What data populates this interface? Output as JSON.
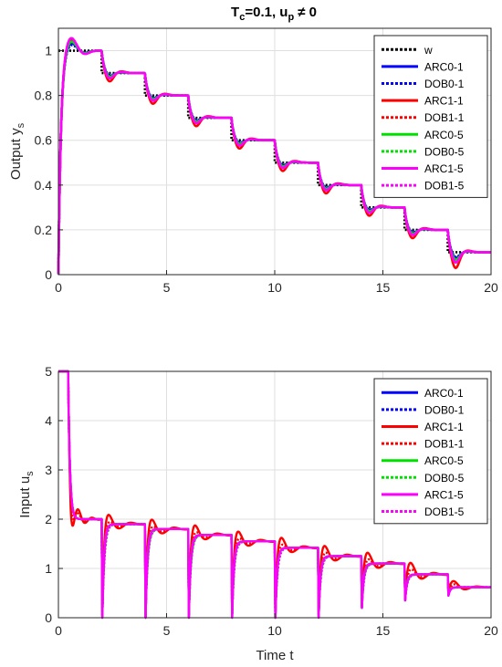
{
  "chart_data": [
    {
      "type": "line",
      "title_main": "T",
      "title_sub1": "c",
      "title_mid": "=0.1, u",
      "title_sub2": "p",
      "title_end": "≠ 0",
      "ylabel_main": "Output y",
      "ylabel_sub": "s",
      "xlim": [
        0,
        20
      ],
      "ylim": [
        0,
        1.1
      ],
      "xticks": [
        "0",
        "5",
        "10",
        "15",
        "20"
      ],
      "yticks": [
        "0",
        "0.2",
        "0.4",
        "0.6",
        "0.8",
        "1"
      ],
      "grid": true,
      "legend_position": "top-right",
      "setpoint": {
        "x": [
          0,
          2,
          4,
          6,
          8,
          10,
          12,
          14,
          16,
          18,
          20
        ],
        "y": [
          1.0,
          0.9,
          0.8,
          0.7,
          0.6,
          0.5,
          0.4,
          0.3,
          0.2,
          0.1,
          0.1
        ]
      },
      "series": [
        {
          "name": "w",
          "color": "#000000",
          "style": "dotted"
        },
        {
          "name": "ARC0-1",
          "color": "#0000ff",
          "style": "solid",
          "overshoot": 0.025,
          "step_undershoot": 0.012
        },
        {
          "name": "DOB0-1",
          "color": "#0000ff",
          "style": "dotted",
          "overshoot": 0.02,
          "step_undershoot": 0.01
        },
        {
          "name": "ARC1-1",
          "color": "#ff0000",
          "style": "solid",
          "overshoot": 0.035,
          "step_undershoot": 0.03
        },
        {
          "name": "DOB1-1",
          "color": "#ff0000",
          "style": "dotted",
          "overshoot": 0.03,
          "step_undershoot": 0.02
        },
        {
          "name": "ARC0-5",
          "color": "#00e000",
          "style": "solid",
          "overshoot": 0.03,
          "step_undershoot": 0.015
        },
        {
          "name": "DOB0-5",
          "color": "#00e000",
          "style": "dotted",
          "overshoot": 0.03,
          "step_undershoot": 0.015
        },
        {
          "name": "ARC1-5",
          "color": "#ff00ff",
          "style": "solid",
          "overshoot": 0.04,
          "step_undershoot": 0.02
        },
        {
          "name": "DOB1-5",
          "color": "#ff00ff",
          "style": "dotted",
          "overshoot": 0.04,
          "step_undershoot": 0.02
        }
      ]
    },
    {
      "type": "line",
      "ylabel_main": "Input u",
      "ylabel_sub": "s",
      "xlabel": "Time t",
      "xlim": [
        0,
        20
      ],
      "ylim": [
        0,
        5
      ],
      "xticks": [
        "0",
        "5",
        "10",
        "15",
        "20"
      ],
      "yticks": [
        "0",
        "1",
        "2",
        "3",
        "4",
        "5"
      ],
      "grid": true,
      "legend_position": "top-right",
      "steady_levels": [
        {
          "x0": 0.5,
          "x1": 2,
          "y": 2.0
        },
        {
          "x0": 2,
          "x1": 4,
          "y": 1.9
        },
        {
          "x0": 4,
          "x1": 6,
          "y": 1.8
        },
        {
          "x0": 6,
          "x1": 8,
          "y": 1.68
        },
        {
          "x0": 8,
          "x1": 10,
          "y": 1.55
        },
        {
          "x0": 10,
          "x1": 12,
          "y": 1.42
        },
        {
          "x0": 12,
          "x1": 14,
          "y": 1.25
        },
        {
          "x0": 14,
          "x1": 16,
          "y": 1.1
        },
        {
          "x0": 16,
          "x1": 18,
          "y": 0.88
        },
        {
          "x0": 18,
          "x1": 20,
          "y": 0.62
        }
      ],
      "dip_minimum": [
        0,
        0,
        0,
        0,
        0,
        0,
        0,
        0.2,
        0.35,
        0.45
      ],
      "series": [
        {
          "name": "ARC0-1",
          "color": "#0000ff",
          "style": "solid"
        },
        {
          "name": "DOB0-1",
          "color": "#0000ff",
          "style": "dotted"
        },
        {
          "name": "ARC1-1",
          "color": "#ff0000",
          "style": "solid",
          "oscillation": 0.45
        },
        {
          "name": "DOB1-1",
          "color": "#ff0000",
          "style": "dotted",
          "oscillation": 0.25
        },
        {
          "name": "ARC0-5",
          "color": "#00e000",
          "style": "solid"
        },
        {
          "name": "DOB0-5",
          "color": "#00e000",
          "style": "dotted"
        },
        {
          "name": "ARC1-5",
          "color": "#ff00ff",
          "style": "solid"
        },
        {
          "name": "DOB1-5",
          "color": "#ff00ff",
          "style": "dotted"
        }
      ]
    }
  ]
}
